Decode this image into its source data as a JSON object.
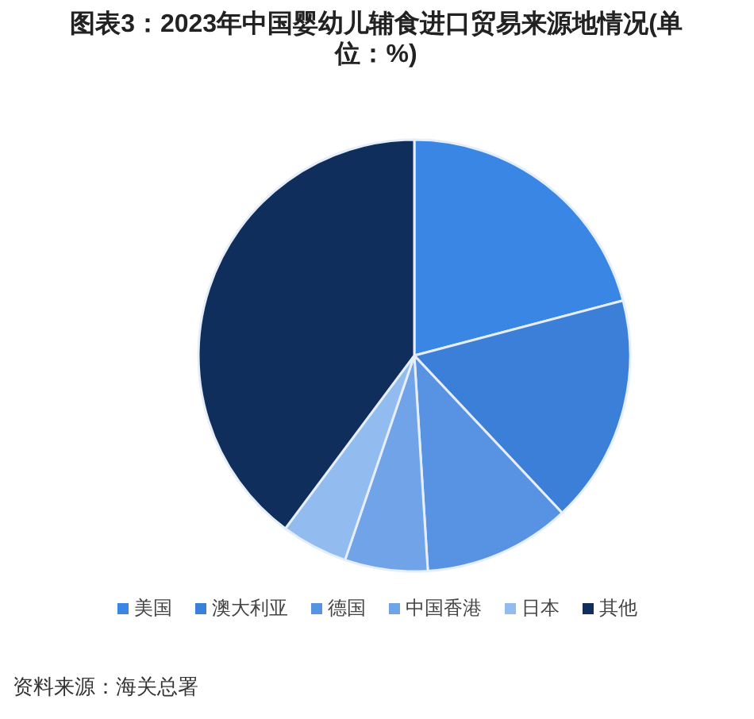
{
  "chart_data": {
    "type": "pie",
    "title": "图表3：2023年中国婴幼儿辅食进口贸易来源地情况(单位：%)",
    "categories": [
      "美国",
      "澳大利亚",
      "德国",
      "中国香港",
      "日本",
      "其他"
    ],
    "values": [
      20.9,
      17.1,
      11.0,
      6.2,
      5.0,
      39.8
    ],
    "colors": [
      "#3a86e4",
      "#3c7fd8",
      "#5892e2",
      "#71a3e8",
      "#92bbf0",
      "#0f2e5c"
    ],
    "legend": "bottom",
    "annotations": [
      "资料来源：海关总署"
    ]
  }
}
